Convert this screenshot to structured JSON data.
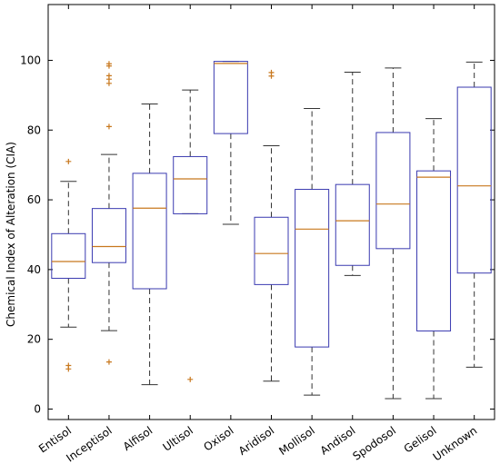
{
  "chart_data": {
    "type": "boxplot",
    "ylabel": "Chemical Index of Alteration (CIA)",
    "xlabel": "",
    "title": "",
    "ylim": [
      -3,
      116
    ],
    "yticks": [
      0,
      20,
      40,
      60,
      80,
      100
    ],
    "grid": false,
    "colors": {
      "box": "#3a3ab0",
      "median": "#c8781e",
      "whisker": "#333333",
      "outlier": "#c8781e",
      "axis": "#000000"
    },
    "categories": [
      "Entisol",
      "Inceptisol",
      "Alfisol",
      "Ultisol",
      "Oxisol",
      "Aridisol",
      "Mollisol",
      "Andisol",
      "Spodosol",
      "Gelisol",
      "Unknown"
    ],
    "boxes": [
      {
        "category": "Entisol",
        "whisker_low": 23.5,
        "q1": 37.5,
        "median": 42.3,
        "q3": 50.3,
        "whisker_high": 65.3,
        "outliers": [
          71,
          12.5,
          11.5
        ]
      },
      {
        "category": "Inceptisol",
        "whisker_low": 22.5,
        "q1": 42.0,
        "median": 46.6,
        "q3": 57.5,
        "whisker_high": 73.0,
        "outliers": [
          99.0,
          98.4,
          95.6,
          94.6,
          93.4,
          81.0,
          13.5
        ]
      },
      {
        "category": "Alfisol",
        "whisker_low": 7.0,
        "q1": 34.5,
        "median": 57.6,
        "q3": 67.6,
        "whisker_high": 87.5,
        "outliers": []
      },
      {
        "category": "Ultisol",
        "whisker_low": 56.0,
        "q1": 56.0,
        "median": 66.0,
        "q3": 72.4,
        "whisker_high": 91.5,
        "outliers": [
          8.5
        ]
      },
      {
        "category": "Oxisol",
        "whisker_low": 53.0,
        "q1": 79.0,
        "median": 99.1,
        "q3": 99.7,
        "whisker_high": 99.7,
        "outliers": []
      },
      {
        "category": "Aridisol",
        "whisker_low": 8.0,
        "q1": 35.7,
        "median": 44.6,
        "q3": 55.0,
        "whisker_high": 75.5,
        "outliers": [
          96.5,
          95.5
        ]
      },
      {
        "category": "Mollisol",
        "whisker_low": 4.0,
        "q1": 17.8,
        "median": 51.6,
        "q3": 63.0,
        "whisker_high": 86.2,
        "outliers": []
      },
      {
        "category": "Andisol",
        "whisker_low": 38.3,
        "q1": 41.2,
        "median": 54.0,
        "q3": 64.4,
        "whisker_high": 96.6,
        "outliers": []
      },
      {
        "category": "Spodosol",
        "whisker_low": 3.0,
        "q1": 46.0,
        "median": 58.8,
        "q3": 79.3,
        "whisker_high": 97.8,
        "outliers": []
      },
      {
        "category": "Gelisol",
        "whisker_low": 3.0,
        "q1": 22.4,
        "median": 66.5,
        "q3": 68.3,
        "whisker_high": 83.3,
        "outliers": []
      },
      {
        "category": "Unknown",
        "whisker_low": 12.0,
        "q1": 39.0,
        "median": 64.0,
        "q3": 92.3,
        "whisker_high": 99.5,
        "outliers": []
      }
    ]
  }
}
